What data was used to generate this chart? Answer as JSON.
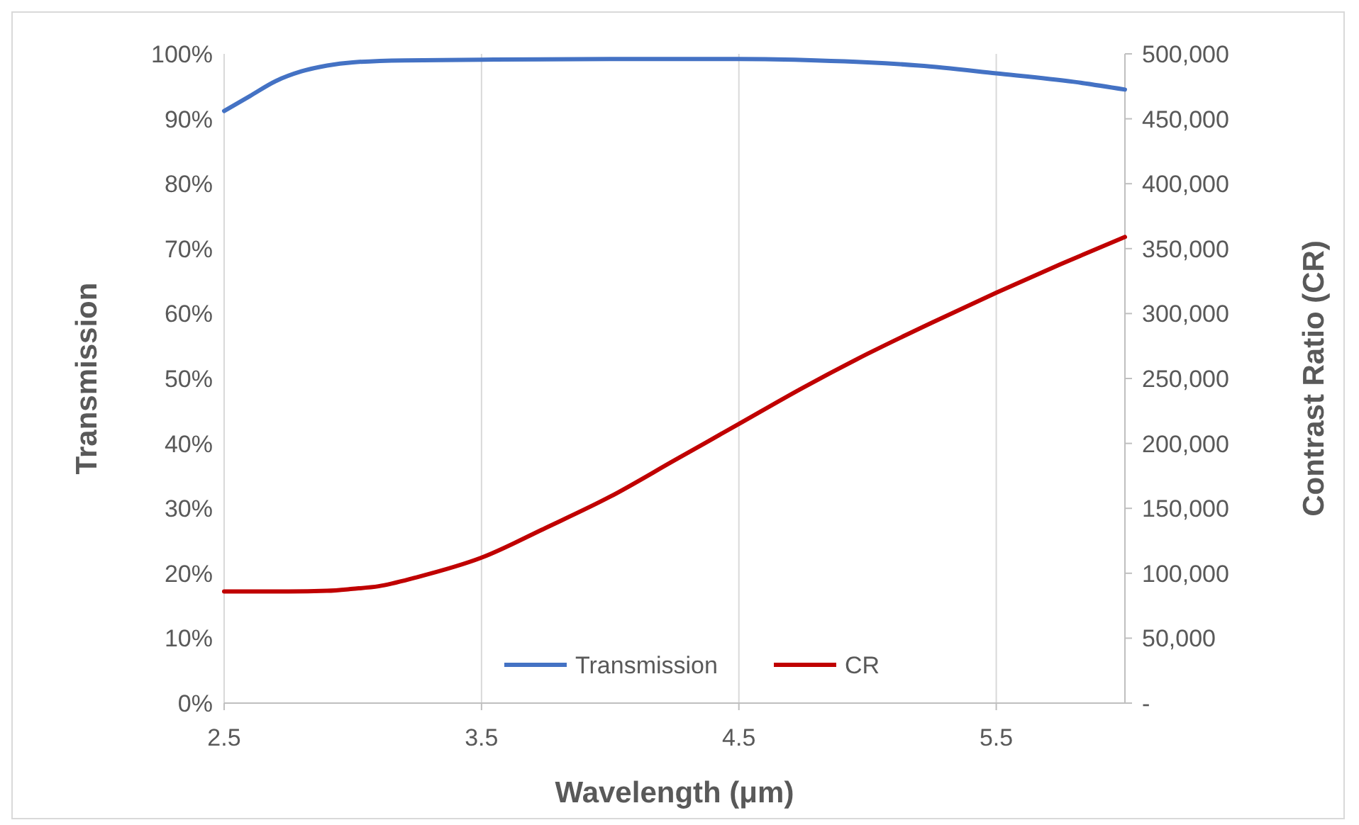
{
  "chart_data": {
    "type": "line",
    "xlabel": "Wavelength (μm)",
    "ylabel": "Transmission",
    "y2label": "Contrast Ratio (CR)",
    "xlim": [
      2.5,
      6
    ],
    "xticks": [
      2.5,
      3.5,
      4.5,
      5.5
    ],
    "ylim": [
      0,
      100
    ],
    "yticks": [
      {
        "value": 0,
        "label": "0%"
      },
      {
        "value": 10,
        "label": "10%"
      },
      {
        "value": 20,
        "label": "20%"
      },
      {
        "value": 30,
        "label": "30%"
      },
      {
        "value": 40,
        "label": "40%"
      },
      {
        "value": 50,
        "label": "50%"
      },
      {
        "value": 60,
        "label": "60%"
      },
      {
        "value": 70,
        "label": "70%"
      },
      {
        "value": 80,
        "label": "80%"
      },
      {
        "value": 90,
        "label": "90%"
      },
      {
        "value": 100,
        "label": "100%"
      }
    ],
    "y2lim": [
      0,
      500000
    ],
    "y2ticks": [
      {
        "value": 0,
        "label": "-"
      },
      {
        "value": 50000,
        "label": "50,000"
      },
      {
        "value": 100000,
        "label": "100,000"
      },
      {
        "value": 150000,
        "label": "150,000"
      },
      {
        "value": 200000,
        "label": "200,000"
      },
      {
        "value": 250000,
        "label": "250,000"
      },
      {
        "value": 300000,
        "label": "300,000"
      },
      {
        "value": 350000,
        "label": "350,000"
      },
      {
        "value": 400000,
        "label": "400,000"
      },
      {
        "value": 450000,
        "label": "450,000"
      },
      {
        "value": 500000,
        "label": "500,000"
      }
    ],
    "grid": "x",
    "legend": "bottom",
    "marker": "none",
    "line_style": "solid",
    "series": [
      {
        "name": "Transmission",
        "color": "#4472c4",
        "x": [
          2.5,
          2.6,
          2.7,
          2.8,
          2.9,
          3.0,
          3.2,
          3.5,
          4.0,
          4.5,
          4.8,
          5.0,
          5.2,
          5.5,
          5.8,
          6.0
        ],
        "values": [
          91.2,
          93.5,
          95.8,
          97.3,
          98.2,
          98.7,
          99.0,
          99.1,
          99.2,
          99.2,
          99.0,
          98.7,
          98.2,
          97.0,
          95.7,
          94.5
        ]
      },
      {
        "name": "CR",
        "color": "#c00000",
        "axis": "y2",
        "x": [
          2.5,
          2.75,
          2.9,
          3.0,
          3.1,
          3.25,
          3.5,
          3.75,
          4.0,
          4.25,
          4.5,
          4.75,
          5.0,
          5.25,
          5.5,
          5.75,
          6.0
        ],
        "values": [
          86000,
          86000,
          86500,
          88000,
          90000,
          97000,
          112000,
          135000,
          159000,
          187000,
          215000,
          243000,
          269000,
          293000,
          316000,
          338000,
          359000
        ]
      }
    ]
  }
}
